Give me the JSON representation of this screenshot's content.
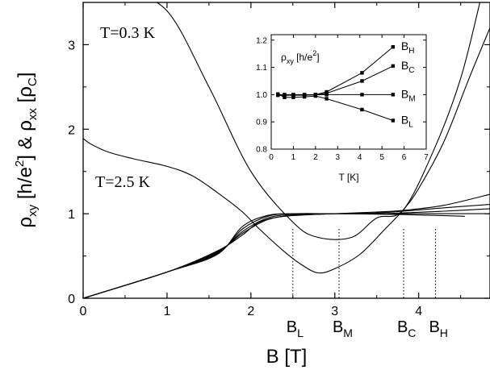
{
  "chart_data": [
    {
      "id": "main",
      "type": "line",
      "xlabel": "B [T]",
      "ylabel_parts": {
        "rho_xy": "ρ",
        "xy": "xy",
        "mid1": " [h/e",
        "sup2": "2",
        "mid2": "] & ",
        "rho_xx": "ρ",
        "xx": "xx",
        "mid3": " [ρ",
        "c": "C",
        "end": "]"
      },
      "xlim": [
        0,
        4.85
      ],
      "ylim": [
        0,
        3.5
      ],
      "xticks": [
        0,
        1,
        2,
        3,
        4
      ],
      "yticks": [
        0,
        1,
        2,
        3
      ],
      "annotations": {
        "t_low": "T=0.3 K",
        "t_high": "T=2.5 K"
      },
      "field_markers": [
        {
          "x": 2.5,
          "label": "B",
          "sub": "L"
        },
        {
          "x": 3.05,
          "label": "B",
          "sub": "M"
        },
        {
          "x": 3.82,
          "label": "B",
          "sub": "C"
        },
        {
          "x": 4.2,
          "label": "B",
          "sub": "H"
        }
      ],
      "series": [
        {
          "values": [
            [
              0.0,
              3.7
            ],
            [
              0.5,
              3.6
            ],
            [
              1.0,
              3.4
            ],
            [
              1.5,
              2.5
            ],
            [
              2.0,
              1.5
            ],
            [
              2.5,
              0.9
            ],
            [
              2.8,
              0.72
            ],
            [
              3.2,
              0.72
            ],
            [
              3.5,
              0.95
            ],
            [
              3.82,
              1.05
            ],
            [
              4.2,
              1.8
            ],
            [
              4.5,
              2.6
            ],
            [
              4.73,
              3.5
            ]
          ]
        },
        {
          "values": [
            [
              0.0,
              1.89
            ],
            [
              0.1,
              1.82
            ],
            [
              0.3,
              1.73
            ],
            [
              0.6,
              1.65
            ],
            [
              1.0,
              1.56
            ],
            [
              1.3,
              1.45
            ],
            [
              1.6,
              1.25
            ],
            [
              1.9,
              1.02
            ],
            [
              2.1,
              0.82
            ],
            [
              2.4,
              0.55
            ],
            [
              2.6,
              0.4
            ],
            [
              2.8,
              0.3
            ],
            [
              3.0,
              0.35
            ],
            [
              3.3,
              0.52
            ],
            [
              3.6,
              0.82
            ],
            [
              3.82,
              1.05
            ],
            [
              4.0,
              1.3
            ],
            [
              4.3,
              1.85
            ],
            [
              4.6,
              2.6
            ],
            [
              4.85,
              3.2
            ]
          ]
        },
        {
          "values": [
            [
              0.0,
              0.0
            ],
            [
              1.0,
              0.31
            ],
            [
              1.6,
              0.56
            ],
            [
              1.9,
              0.75
            ],
            [
              2.1,
              0.9
            ],
            [
              2.4,
              0.97
            ],
            [
              3.0,
              1.0
            ],
            [
              3.5,
              1.02
            ],
            [
              3.82,
              1.04
            ],
            [
              4.3,
              1.1
            ],
            [
              4.85,
              1.23
            ]
          ]
        },
        {
          "values": [
            [
              0.0,
              0.0
            ],
            [
              1.0,
              0.31
            ],
            [
              1.6,
              0.55
            ],
            [
              1.9,
              0.77
            ],
            [
              2.2,
              0.93
            ],
            [
              2.5,
              0.98
            ],
            [
              3.0,
              1.0
            ],
            [
              3.5,
              1.01
            ],
            [
              3.82,
              1.03
            ],
            [
              4.3,
              1.07
            ],
            [
              4.85,
              1.11
            ]
          ]
        },
        {
          "values": [
            [
              0.0,
              0.0
            ],
            [
              1.0,
              0.31
            ],
            [
              1.6,
              0.54
            ],
            [
              1.9,
              0.79
            ],
            [
              2.2,
              0.95
            ],
            [
              2.5,
              0.99
            ],
            [
              3.0,
              1.0
            ],
            [
              3.5,
              1.0
            ],
            [
              3.82,
              1.01
            ],
            [
              4.3,
              1.03
            ],
            [
              4.85,
              1.06
            ]
          ]
        },
        {
          "values": [
            [
              0.0,
              0.0
            ],
            [
              1.0,
              0.31
            ],
            [
              1.6,
              0.53
            ],
            [
              1.9,
              0.82
            ],
            [
              2.2,
              0.97
            ],
            [
              2.5,
              1.0
            ],
            [
              3.0,
              1.0
            ],
            [
              3.5,
              1.0
            ],
            [
              3.82,
              1.0
            ],
            [
              4.3,
              1.0
            ],
            [
              4.85,
              1.0
            ]
          ]
        },
        {
          "values": [
            [
              0.0,
              0.0
            ],
            [
              1.0,
              0.31
            ],
            [
              1.6,
              0.52
            ],
            [
              1.9,
              0.85
            ],
            [
              2.2,
              0.98
            ],
            [
              2.5,
              1.0
            ],
            [
              3.0,
              1.0
            ],
            [
              3.5,
              0.995
            ],
            [
              3.82,
              0.99
            ],
            [
              4.2,
              0.98
            ],
            [
              4.55,
              0.97
            ]
          ]
        }
      ]
    },
    {
      "id": "inset",
      "type": "line",
      "xlabel": "T [K]",
      "ylabel_parts": {
        "rho": "ρ",
        "sub": "xy",
        "mid": " [h/e",
        "sup": "2",
        "end": "]"
      },
      "xlim": [
        0,
        7
      ],
      "ylim": [
        0.8,
        1.22
      ],
      "xticks": [
        0,
        1,
        2,
        3,
        4,
        5,
        6,
        7
      ],
      "yticks": [
        0.8,
        0.9,
        1.0,
        1.1,
        1.2
      ],
      "ytick_labels": [
        "0.8",
        "0.9",
        "1.0",
        "1.1",
        "1.2"
      ],
      "series": [
        {
          "label": "B",
          "sub": "H",
          "x": [
            0.3,
            0.6,
            1.0,
            1.5,
            2.0,
            2.5,
            4.1,
            5.5
          ],
          "values": [
            0.998,
            0.998,
            0.998,
            0.999,
            1.0,
            1.01,
            1.08,
            1.175
          ]
        },
        {
          "label": "B",
          "sub": "C",
          "x": [
            0.3,
            0.6,
            1.0,
            1.5,
            2.0,
            2.5,
            4.1,
            5.5
          ],
          "values": [
            0.998,
            0.998,
            0.998,
            0.998,
            0.999,
            1.005,
            1.05,
            1.105
          ]
        },
        {
          "label": "B",
          "sub": "M",
          "x": [
            0.3,
            0.6,
            1.0,
            1.5,
            2.0,
            2.5,
            4.1,
            5.5
          ],
          "values": [
            1.0,
            1.0,
            1.0,
            1.0,
            1.0,
            1.0,
            1.0,
            1.0
          ]
        },
        {
          "label": "B",
          "sub": "L",
          "x": [
            0.3,
            0.6,
            1.0,
            1.5,
            2.0,
            2.5,
            4.1,
            5.5
          ],
          "values": [
            1.002,
            0.99,
            0.99,
            0.992,
            0.995,
            0.985,
            0.945,
            0.905
          ]
        }
      ]
    }
  ]
}
